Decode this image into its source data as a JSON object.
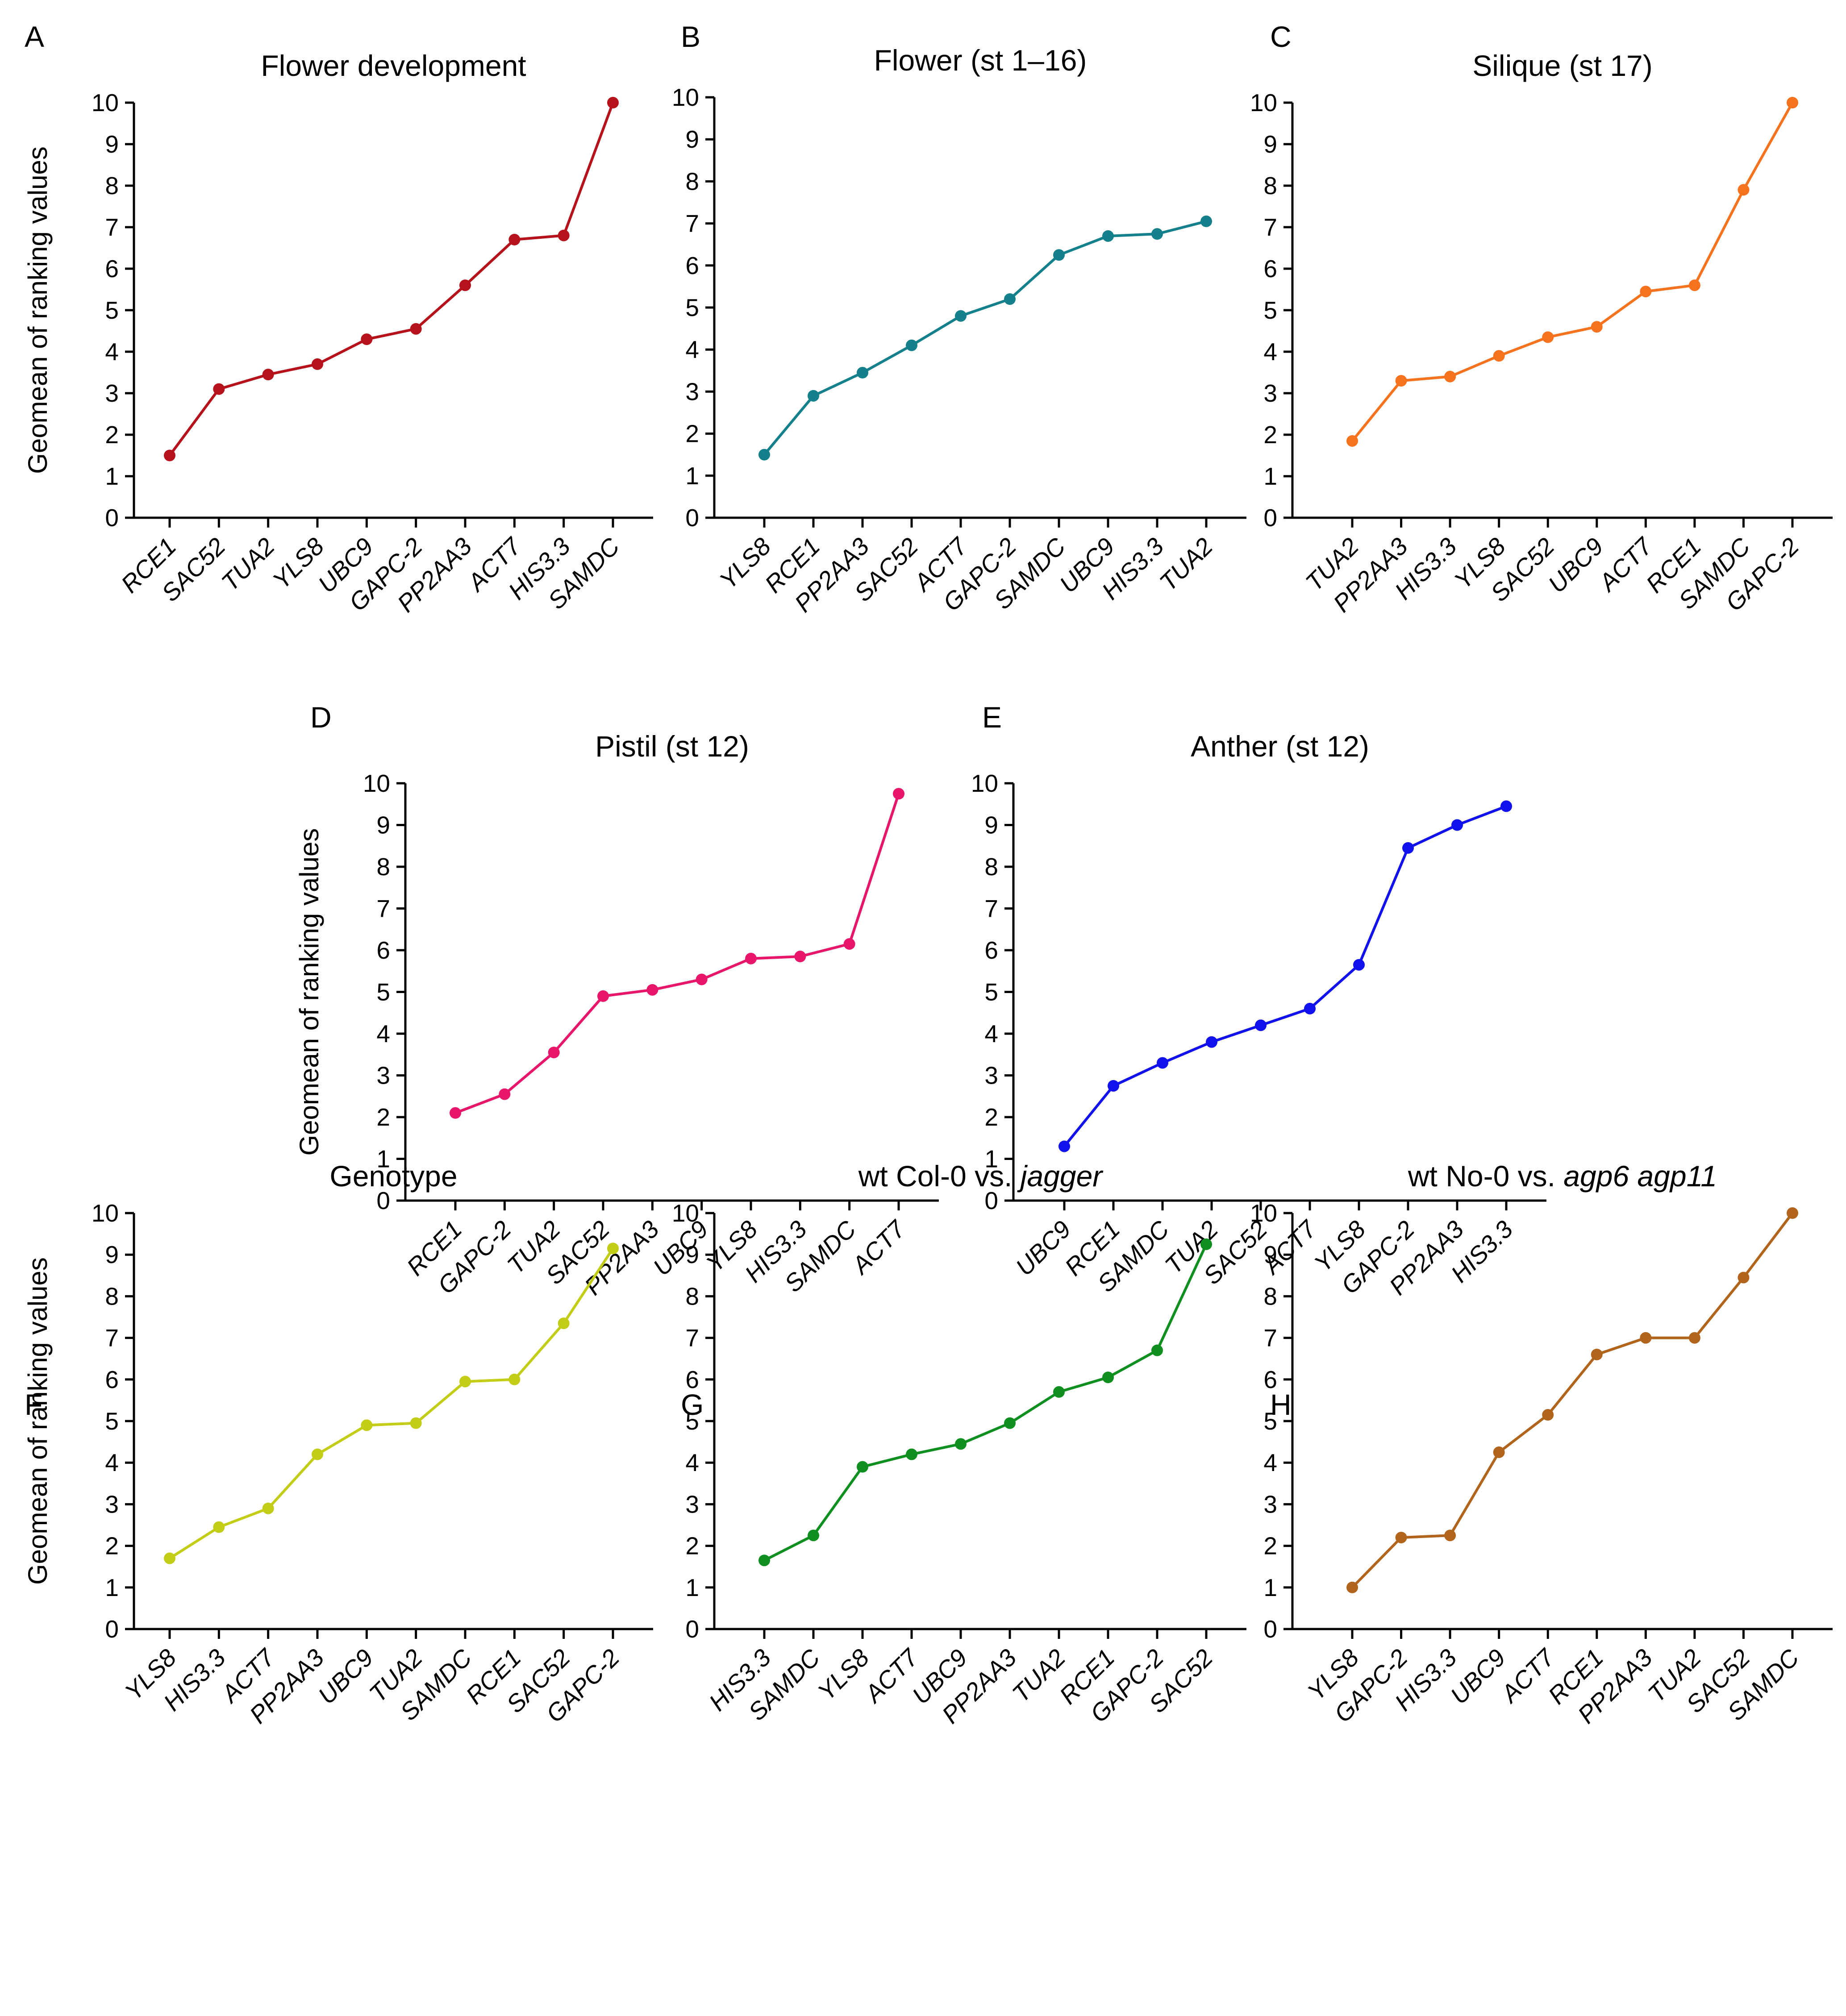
{
  "figure": {
    "ylabel": "Geomean of ranking values",
    "yticks": [
      0,
      1,
      2,
      3,
      4,
      5,
      6,
      7,
      8,
      9,
      10
    ],
    "ylim": [
      0,
      10
    ],
    "grid": false,
    "legend": "none"
  },
  "chart_data": [
    {
      "panel": "A",
      "type": "line",
      "title": "Flower development",
      "color": "#b5121b",
      "categories": [
        "RCE1",
        "SAC52",
        "TUA2",
        "YLS8",
        "UBC9",
        "GAPC-2",
        "PP2AA3",
        "ACT7",
        "HIS3.3",
        "SAMDC"
      ],
      "values": [
        1.5,
        3.1,
        3.45,
        3.7,
        4.3,
        4.55,
        5.6,
        6.7,
        6.8,
        10.0
      ],
      "ylabel": "Geomean of ranking values",
      "ylim": [
        0,
        10
      ]
    },
    {
      "panel": "B",
      "type": "line",
      "title": "Flower (st 1–16)",
      "color": "#13808c",
      "categories": [
        "YLS8",
        "RCE1",
        "PP2AA3",
        "SAC52",
        "ACT7",
        "GAPC-2",
        "SAMDC",
        "UBC9",
        "HIS3.3",
        "TUA2"
      ],
      "values": [
        1.5,
        2.9,
        3.45,
        4.1,
        4.8,
        5.2,
        6.25,
        6.7,
        6.75,
        7.05
      ],
      "ylabel": "",
      "ylim": [
        0,
        10
      ]
    },
    {
      "panel": "C",
      "type": "line",
      "title": "Silique (st 17)",
      "color": "#f5731e",
      "categories": [
        "TUA2",
        "PP2AA3",
        "HIS3.3",
        "YLS8",
        "SAC52",
        "UBC9",
        "ACT7",
        "RCE1",
        "SAMDC",
        "GAPC-2"
      ],
      "values": [
        1.85,
        3.3,
        3.4,
        3.9,
        4.35,
        4.6,
        5.45,
        5.6,
        7.9,
        10.0
      ],
      "ylabel": "",
      "ylim": [
        0,
        10
      ]
    },
    {
      "panel": "D",
      "type": "line",
      "title": "Pistil (st 12)",
      "color": "#e7166b",
      "categories": [
        "RCE1",
        "GAPC-2",
        "TUA2",
        "SAC52",
        "PP2AA3",
        "UBC9",
        "YLS8",
        "HIS3.3",
        "SAMDC",
        "ACT7"
      ],
      "values": [
        2.1,
        2.55,
        3.55,
        4.9,
        5.05,
        5.3,
        5.8,
        5.85,
        6.15,
        9.75
      ],
      "ylabel": "Geomean of ranking values",
      "ylim": [
        0,
        10
      ]
    },
    {
      "panel": "E",
      "type": "line",
      "title": "Anther (st 12)",
      "color": "#1111ee",
      "categories": [
        "UBC9",
        "RCE1",
        "SAMDC",
        "TUA2",
        "SAC52",
        "ACT7",
        "YLS8",
        "GAPC-2",
        "PP2AA3",
        "HIS3.3"
      ],
      "values": [
        1.3,
        2.75,
        3.3,
        3.8,
        4.2,
        4.6,
        5.65,
        8.45,
        9.0,
        9.45
      ],
      "ylabel": "",
      "ylim": [
        0,
        10
      ]
    },
    {
      "panel": "F",
      "type": "line",
      "title": "Genotype",
      "color": "#c3cc16",
      "categories": [
        "YLS8",
        "HIS3.3",
        "ACT7",
        "PP2AA3",
        "UBC9",
        "TUA2",
        "SAMDC",
        "RCE1",
        "SAC52",
        "GAPC-2"
      ],
      "values": [
        1.7,
        2.45,
        2.9,
        4.2,
        4.9,
        4.95,
        5.95,
        6.0,
        7.35,
        9.15
      ],
      "ylabel": "Geomean of ranking values",
      "ylim": [
        0,
        10
      ]
    },
    {
      "panel": "G",
      "type": "line",
      "title": "wt Col-0 vs. jagger",
      "title_plain": "wt Col-0 vs. ",
      "title_italic": "jagger",
      "color": "#0f8f1f",
      "categories": [
        "HIS3.3",
        "SAMDC",
        "YLS8",
        "ACT7",
        "UBC9",
        "PP2AA3",
        "TUA2",
        "RCE1",
        "GAPC-2",
        "SAC52"
      ],
      "values": [
        1.65,
        2.25,
        3.9,
        4.2,
        4.45,
        4.95,
        5.7,
        6.05,
        6.7,
        9.25
      ],
      "ylabel": "",
      "ylim": [
        0,
        10
      ]
    },
    {
      "panel": "H",
      "type": "line",
      "title": "wt No-0 vs. agp6 agp11",
      "title_plain": "wt No-0 vs. ",
      "title_italic": "agp6 agp11",
      "color": "#b0641c",
      "categories": [
        "YLS8",
        "GAPC-2",
        "HIS3.3",
        "UBC9",
        "ACT7",
        "RCE1",
        "PP2AA3",
        "TUA2",
        "SAC52",
        "SAMDC"
      ],
      "values": [
        1.0,
        2.2,
        2.25,
        4.25,
        5.15,
        6.6,
        7.0,
        7.0,
        8.45,
        10.0
      ],
      "ylabel": "",
      "ylim": [
        0,
        10
      ]
    }
  ]
}
